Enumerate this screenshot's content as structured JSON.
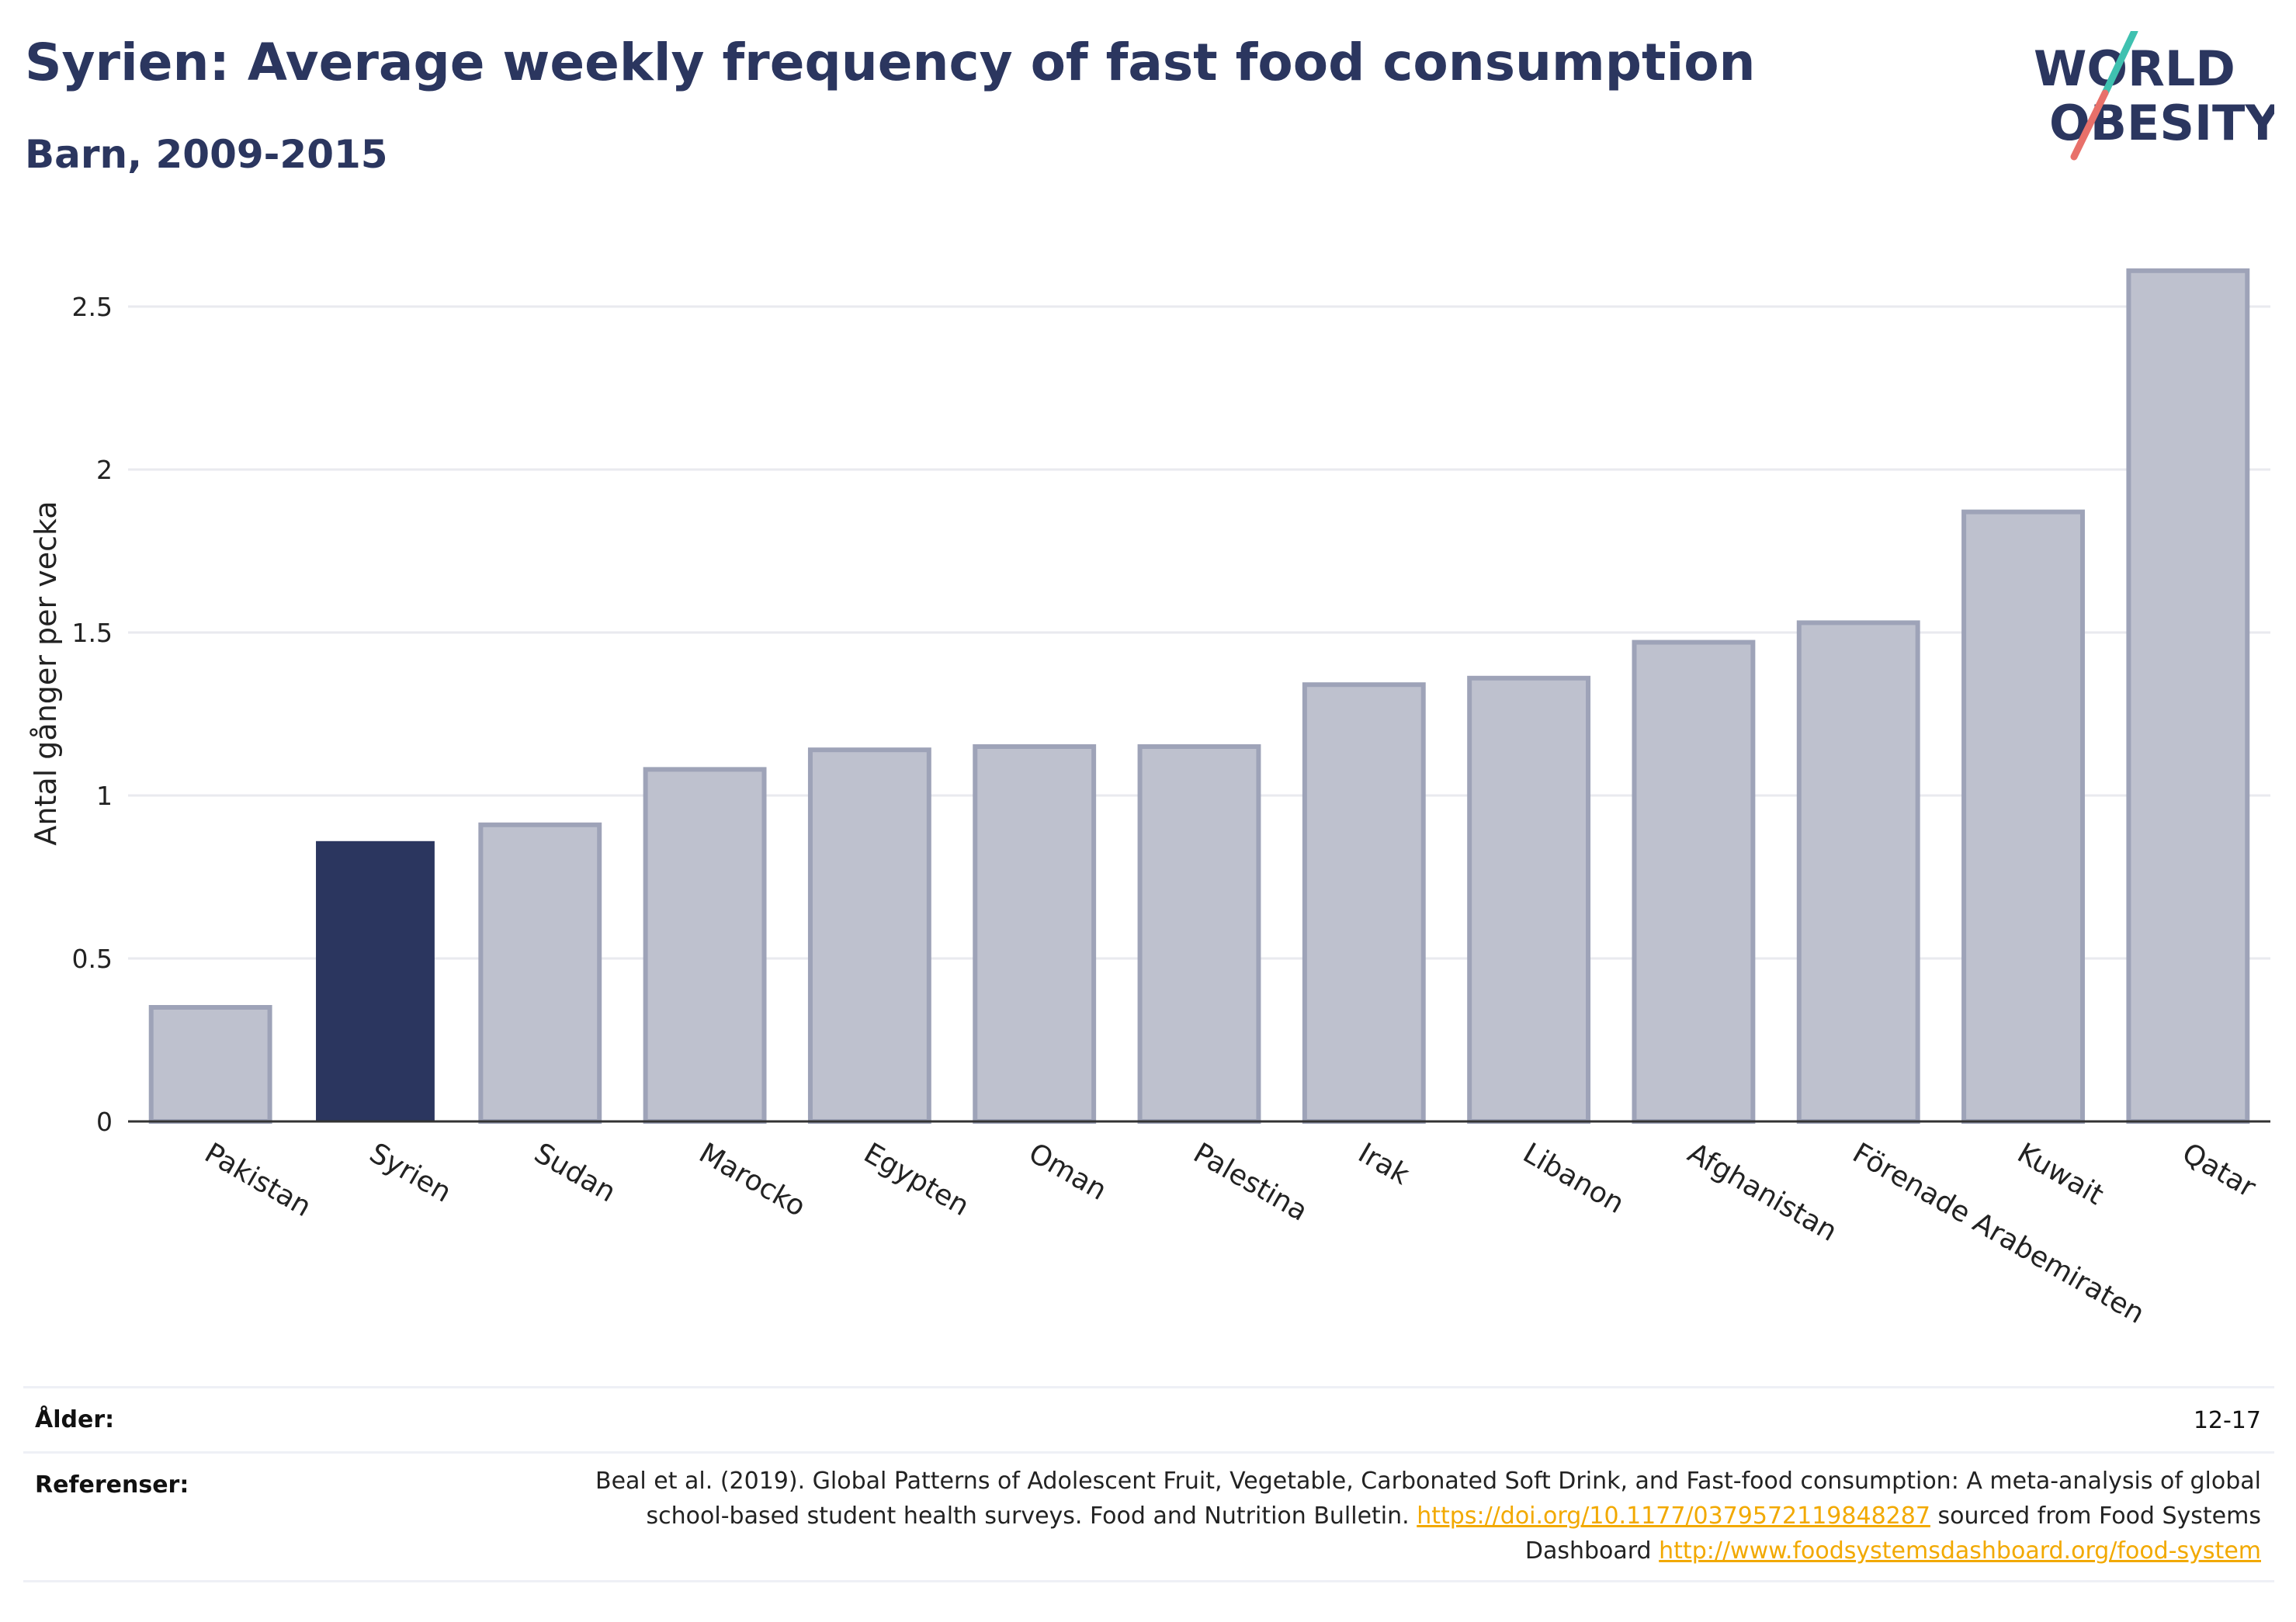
{
  "header": {
    "title": "Syrien: Average weekly frequency of fast food consumption",
    "subtitle": "Barn, 2009-2015"
  },
  "logo": {
    "line1": "WORLD",
    "line2": "OBESITY",
    "text_color": "#2b365f",
    "accent_teal": "#3fc1b0",
    "accent_coral": "#e8706a"
  },
  "chart_data": {
    "type": "bar",
    "categories": [
      "Pakistan",
      "Syrien",
      "Sudan",
      "Marocko",
      "Egypten",
      "Oman",
      "Palestina",
      "Irak",
      "Libanon",
      "Afghanistan",
      "Förenade Arabemiraten",
      "Kuwait",
      "Qatar"
    ],
    "values": [
      0.35,
      0.86,
      0.91,
      1.08,
      1.14,
      1.15,
      1.15,
      1.34,
      1.36,
      1.47,
      1.53,
      1.87,
      2.61
    ],
    "highlight": "Syrien",
    "ylabel": "Antal gånger per vecka",
    "xlabel": "",
    "ylim": [
      0,
      2.75
    ],
    "yticks": [
      0,
      0.5,
      1,
      1.5,
      2,
      2.5
    ],
    "ytick_labels": [
      "0",
      "0.5",
      "1",
      "1.5",
      "2",
      "2.5"
    ],
    "grid": true,
    "colors": {
      "bar": "#bec1ce",
      "bar_border": "#9ea3b8",
      "highlight": "#2b365f",
      "grid": "#e9eaef",
      "axis": "#333333"
    }
  },
  "footer": {
    "age_label": "Ålder:",
    "age_value": "12-17",
    "ref_label": "Referenser:",
    "ref_text_1": "Beal et al. (2019). Global Patterns of Adolescent Fruit, Vegetable, Carbonated Soft Drink, and Fast-food consumption: A meta-analysis of global school-based student health surveys. Food and Nutrition Bulletin.",
    "ref_link_1": "https://doi.org/10.1177/0379572119848287",
    "ref_text_2": "sourced from Food Systems Dashboard",
    "ref_link_2": "http://www.foodsystemsdashboard.org/food-system"
  }
}
